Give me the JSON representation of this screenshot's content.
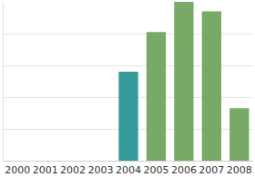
{
  "chart_data": {
    "type": "bar",
    "categories": [
      "2000",
      "2001",
      "2002",
      "2003",
      "2004",
      "2005",
      "2006",
      "2007",
      "2008"
    ],
    "values": [
      null,
      null,
      null,
      null,
      2.8,
      4.05,
      5.0,
      4.7,
      1.65
    ],
    "colors": [
      "#77aa66",
      "#77aa66",
      "#77aa66",
      "#77aa66",
      "#339999",
      "#77aa66",
      "#77aa66",
      "#77aa66",
      "#77aa66"
    ],
    "ylim": [
      0,
      5
    ],
    "yticks": [
      0,
      1,
      2,
      3,
      4,
      5
    ],
    "grid": true,
    "tick_labels": "x"
  }
}
